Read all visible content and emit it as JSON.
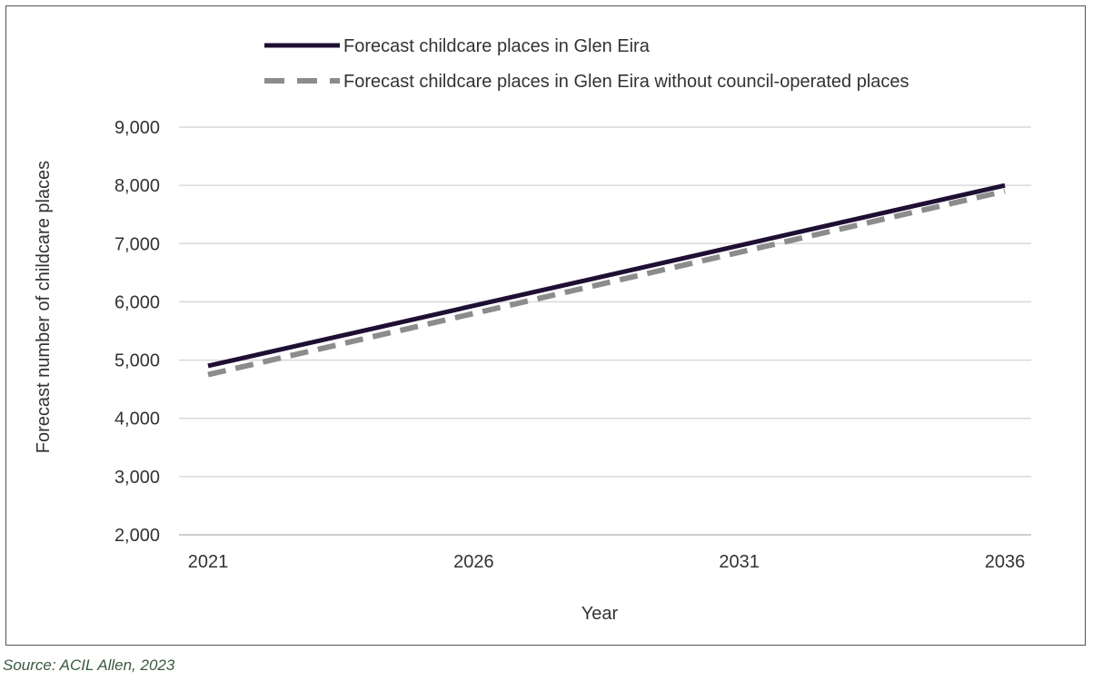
{
  "chart_data": {
    "type": "line",
    "x": [
      2021,
      2036
    ],
    "x_ticks": [
      2021,
      2026,
      2031,
      2036
    ],
    "y_ticks": [
      2000,
      3000,
      4000,
      5000,
      6000,
      7000,
      8000,
      9000
    ],
    "y_tick_labels": [
      "2,000",
      "3,000",
      "4,000",
      "5,000",
      "6,000",
      "7,000",
      "8,000",
      "9,000"
    ],
    "series": [
      {
        "name": "Forecast childcare places in Glen Eira",
        "values": [
          4900,
          8000
        ],
        "color": "#1f0f33",
        "style": "solid"
      },
      {
        "name": "Forecast childcare places in Glen Eira without council-operated places",
        "values": [
          4750,
          7900
        ],
        "color": "#8c8c8c",
        "style": "dashed"
      }
    ],
    "xlabel": "Year",
    "ylabel": "Forecast number of childcare places",
    "xlim": [
      2021,
      2036
    ],
    "ylim": [
      2000,
      9000
    ],
    "grid": "horizontal",
    "legend_position": "top"
  },
  "source": "Source: ACIL Allen, 2023"
}
